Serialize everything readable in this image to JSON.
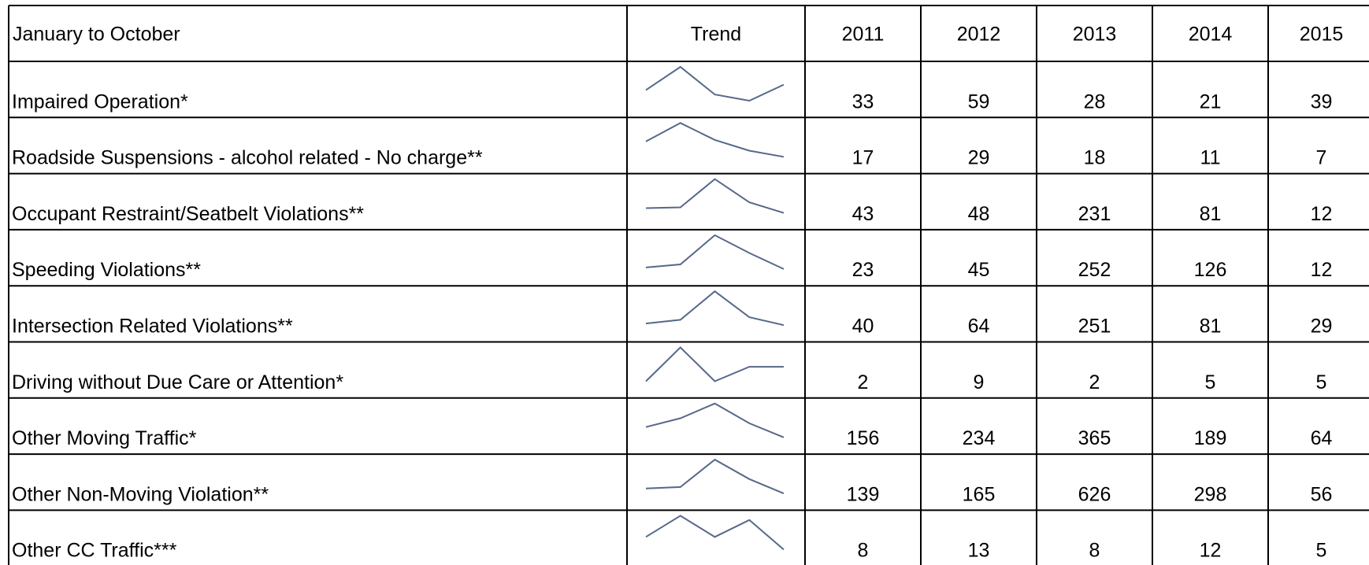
{
  "table": {
    "columns": [
      "January to October",
      "Trend",
      "2011",
      "2012",
      "2013",
      "2014",
      "2015"
    ],
    "rows": [
      {
        "label": "Impaired Operation*",
        "values": [
          33,
          59,
          28,
          21,
          39
        ]
      },
      {
        "label": "Roadside Suspensions - alcohol related - No charge**",
        "values": [
          17,
          29,
          18,
          11,
          7
        ]
      },
      {
        "label": "Occupant Restraint/Seatbelt Violations**",
        "values": [
          43,
          48,
          231,
          81,
          12
        ]
      },
      {
        "label": "Speeding Violations**",
        "values": [
          23,
          45,
          252,
          126,
          12
        ]
      },
      {
        "label": "Intersection Related Violations**",
        "values": [
          40,
          64,
          251,
          81,
          29
        ]
      },
      {
        "label": "Driving without Due Care or Attention*",
        "values": [
          2,
          9,
          2,
          5,
          5
        ]
      },
      {
        "label": "Other Moving Traffic*",
        "values": [
          156,
          234,
          365,
          189,
          64
        ]
      },
      {
        "label": "Other Non-Moving Violation**",
        "values": [
          139,
          165,
          626,
          298,
          56
        ]
      },
      {
        "label": "Other CC Traffic***",
        "values": [
          8,
          13,
          8,
          12,
          5
        ]
      }
    ]
  }
}
